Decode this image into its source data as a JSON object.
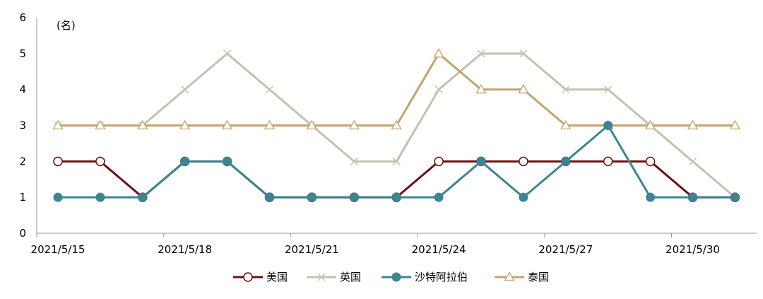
{
  "chart_data": {
    "type": "line",
    "unit_label": "(名)",
    "x": [
      "2021/5/15",
      "2021/5/16",
      "2021/5/17",
      "2021/5/18",
      "2021/5/19",
      "2021/5/20",
      "2021/5/21",
      "2021/5/22",
      "2021/5/23",
      "2021/5/24",
      "2021/5/25",
      "2021/5/26",
      "2021/5/27",
      "2021/5/28",
      "2021/5/29",
      "2021/5/30",
      "2021/5/31"
    ],
    "x_tick_labels": [
      "2021/5/15",
      "2021/5/18",
      "2021/5/21",
      "2021/5/24",
      "2021/5/27",
      "2021/5/30"
    ],
    "ylim": [
      0,
      6
    ],
    "y_ticks": [
      0,
      1,
      2,
      3,
      4,
      5,
      6
    ],
    "grid": false,
    "legend_position": "bottom",
    "series": [
      {
        "name": "美国",
        "color": "#6e0f10",
        "marker": "circle-open",
        "values": [
          2,
          2,
          1,
          2,
          2,
          1,
          1,
          1,
          1,
          2,
          2,
          2,
          2,
          2,
          2,
          1,
          1
        ]
      },
      {
        "name": "英国",
        "color": "#c2c2b0",
        "marker": "x",
        "values": [
          3,
          3,
          3,
          4,
          5,
          4,
          3,
          2,
          2,
          4,
          5,
          5,
          4,
          4,
          3,
          2,
          1
        ]
      },
      {
        "name": "沙特阿拉伯",
        "color": "#3b8594",
        "marker": "circle-filled",
        "values": [
          1,
          1,
          1,
          2,
          2,
          1,
          1,
          1,
          1,
          1,
          2,
          1,
          2,
          3,
          1,
          1,
          1
        ]
      },
      {
        "name": "泰国",
        "color": "#c4a46a",
        "marker": "triangle-open",
        "values": [
          3,
          3,
          3,
          3,
          3,
          3,
          3,
          3,
          3,
          5,
          4,
          4,
          3,
          3,
          3,
          3,
          3
        ]
      }
    ]
  }
}
